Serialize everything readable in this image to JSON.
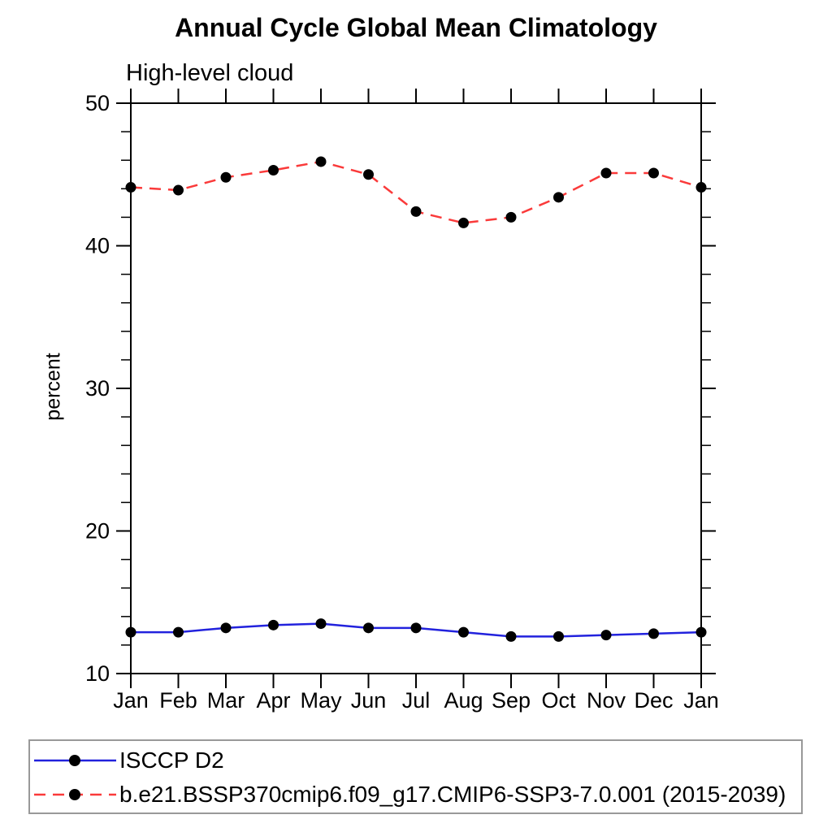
{
  "chart": {
    "title": "Annual Cycle Global Mean Climatology",
    "subtitle": "High-level cloud",
    "ylabel": "percent"
  },
  "chart_data": {
    "type": "line",
    "title": "Annual Cycle Global Mean Climatology",
    "subtitle": "High-level cloud",
    "xlabel": "",
    "ylabel": "percent",
    "ylim": [
      10,
      50
    ],
    "ytick_major": 10,
    "ytick_minor": 2,
    "ytick_labels": [
      "10",
      "20",
      "30",
      "40",
      "50"
    ],
    "categories": [
      "Jan",
      "Feb",
      "Mar",
      "Apr",
      "May",
      "Jun",
      "Jul",
      "Aug",
      "Sep",
      "Oct",
      "Nov",
      "Dec",
      "Jan"
    ],
    "grid": false,
    "legend_position": "bottom-left-box",
    "axis_color": "#000000",
    "marker_color": "#000000",
    "series": [
      {
        "name": "ISCCP D2",
        "color": "#2222dd",
        "line_style": "solid",
        "dash": "",
        "values": [
          12.9,
          12.9,
          13.2,
          13.4,
          13.5,
          13.2,
          13.2,
          12.9,
          12.6,
          12.6,
          12.7,
          12.8,
          12.9
        ]
      },
      {
        "name": "b.e21.BSSP370cmip6.f09_g17.CMIP6-SSP3-7.0.001 (2015-2039)",
        "color": "#fa3a3a",
        "line_style": "dashed",
        "dash": "14 9",
        "values": [
          44.1,
          43.9,
          44.8,
          45.3,
          45.9,
          45.0,
          42.4,
          41.6,
          42.0,
          43.4,
          45.1,
          45.1,
          44.1
        ]
      }
    ]
  }
}
